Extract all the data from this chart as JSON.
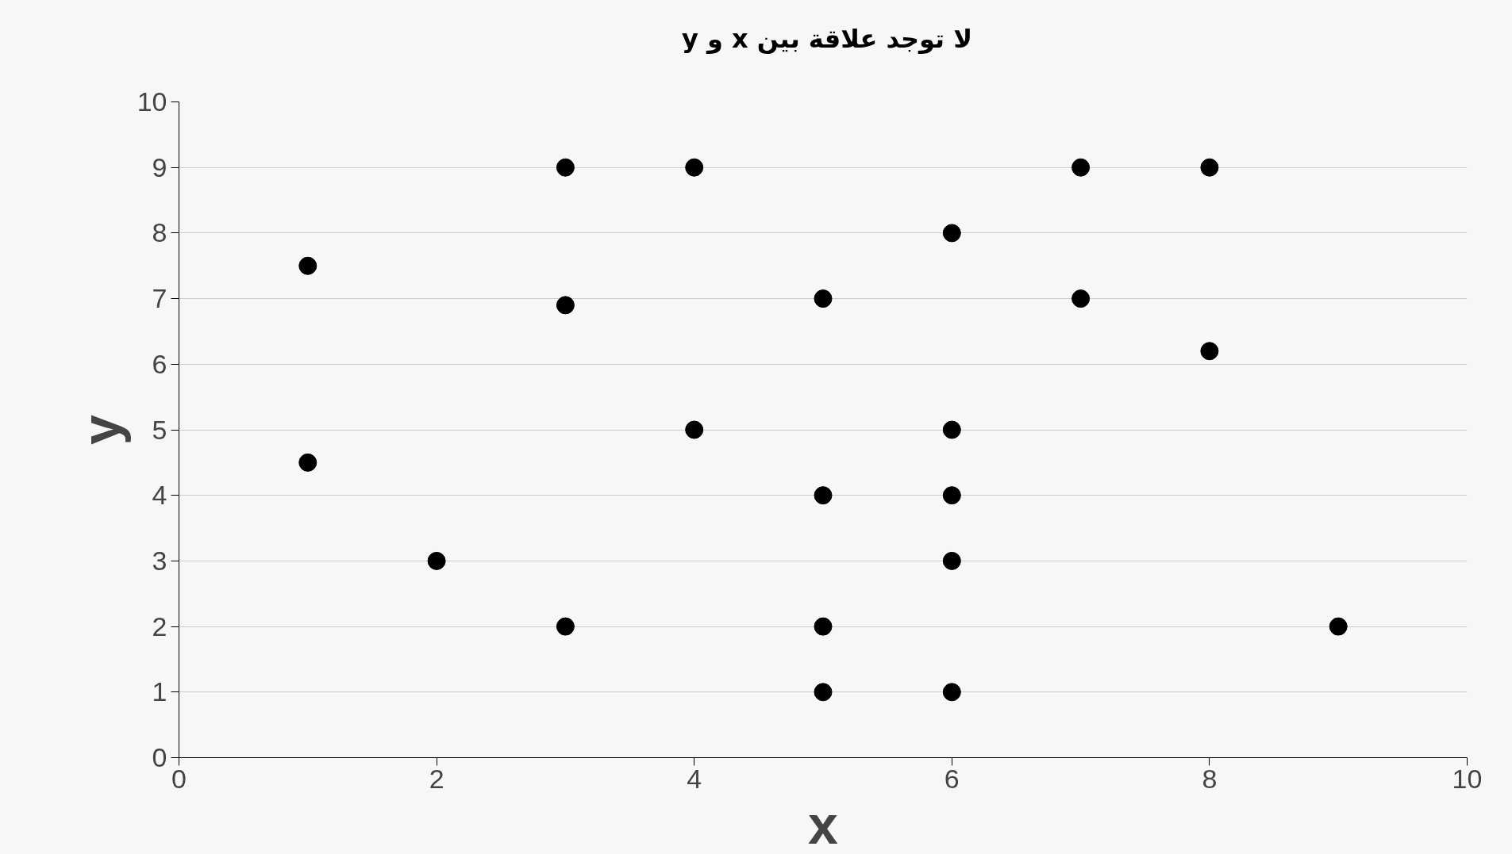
{
  "chart_data": {
    "type": "scatter",
    "title": "لا توجد علاقة بين x و y",
    "xlabel": "x",
    "ylabel": "y",
    "x": [
      1,
      1,
      2,
      3,
      3,
      3,
      4,
      4,
      5,
      5,
      5,
      5,
      6,
      6,
      6,
      6,
      6,
      7,
      7,
      8,
      8,
      9
    ],
    "series": [
      {
        "color": "#000000",
        "values": [
          7.5,
          4.5,
          3,
          9,
          6.9,
          2,
          9,
          5,
          7,
          4,
          2,
          1,
          8,
          5,
          4,
          3,
          1,
          9,
          7,
          9,
          6.2,
          2
        ]
      }
    ],
    "xlim": [
      0,
      10
    ],
    "ylim": [
      0,
      10
    ],
    "xticks": [
      0,
      2,
      4,
      6,
      8,
      10
    ],
    "yticks": [
      0,
      1,
      2,
      3,
      4,
      5,
      6,
      7,
      8,
      9,
      10
    ],
    "grid": "y",
    "marker": "circle"
  }
}
